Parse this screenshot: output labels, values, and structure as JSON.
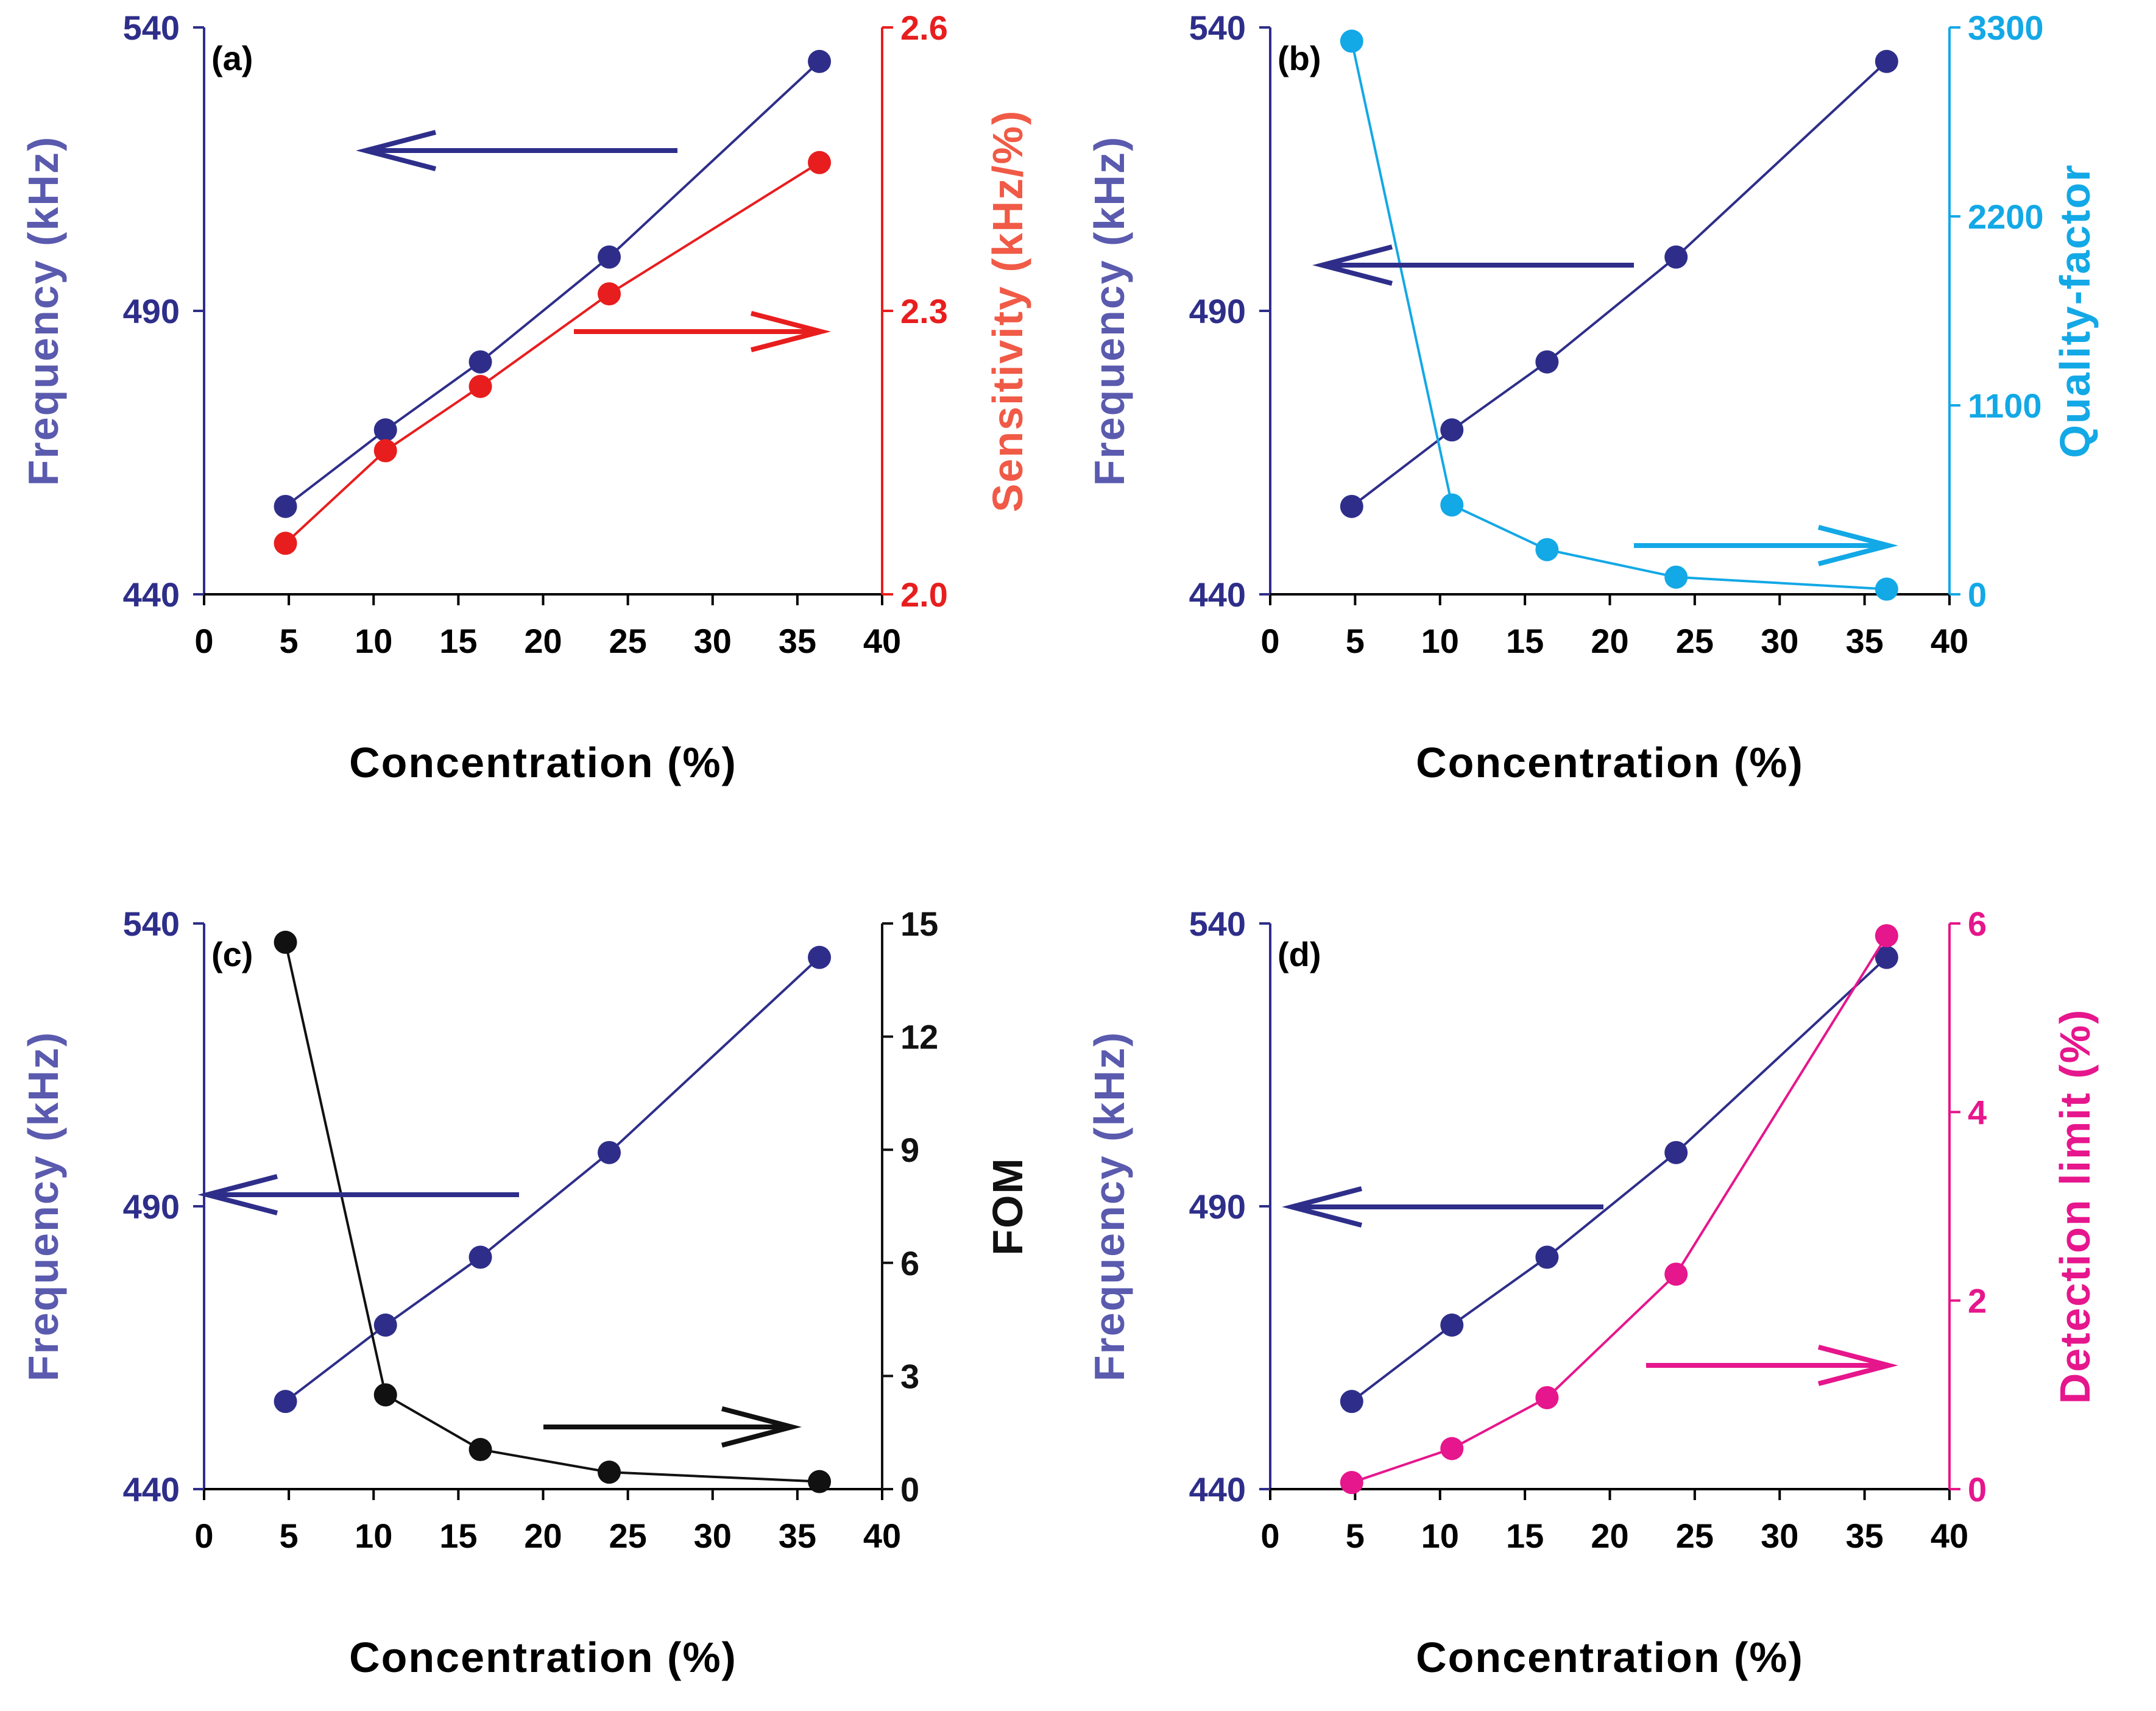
{
  "colors": {
    "frequency": "#2E2E8A",
    "frequency_title": "#5A5AAE",
    "sensitivity": "#E81E1E",
    "sensitivity_title": "#F05A46",
    "quality": "#13A8E6",
    "fom": "#111111",
    "detection": "#E6168C"
  },
  "chart_data": [
    {
      "type": "line",
      "panel_label": "(a)",
      "xlabel": "Concentration (%)",
      "xlim": [
        0,
        40
      ],
      "xticks": [
        "0",
        "5",
        "10",
        "15",
        "20",
        "25",
        "30",
        "35",
        "40"
      ],
      "left_axis": {
        "label": "Frequency (kHz)",
        "ylim": [
          440,
          540
        ],
        "ticks": [
          "440",
          "490",
          "540"
        ]
      },
      "right_axis": {
        "label": "Sensitivity (kHz/%)",
        "ylim": [
          2.0,
          2.6
        ],
        "ticks": [
          "2.0",
          "2.3",
          "2.6"
        ]
      },
      "series": [
        {
          "name": "Frequency",
          "axis": "left",
          "x": [
            4.8,
            10.7,
            16.3,
            23.9,
            36.3
          ],
          "values": [
            455.5,
            469,
            481,
            499.5,
            534
          ]
        },
        {
          "name": "Sensitivity",
          "axis": "right",
          "x": [
            4.8,
            10.7,
            16.3,
            23.9,
            36.3
          ],
          "values": [
            2.054,
            2.152,
            2.22,
            2.318,
            2.457
          ]
        }
      ]
    },
    {
      "type": "line",
      "panel_label": "(b)",
      "xlabel": "Concentration (%)",
      "xlim": [
        0,
        40
      ],
      "xticks": [
        "0",
        "5",
        "10",
        "15",
        "20",
        "25",
        "30",
        "35",
        "40"
      ],
      "left_axis": {
        "label": "Frequency (kHz)",
        "ylim": [
          440,
          540
        ],
        "ticks": [
          "440",
          "490",
          "540"
        ]
      },
      "right_axis": {
        "label": "Quality-factor",
        "ylim": [
          0,
          3300
        ],
        "ticks": [
          "0",
          "1100",
          "2200",
          "3300"
        ]
      },
      "series": [
        {
          "name": "Frequency",
          "axis": "left",
          "x": [
            4.8,
            10.7,
            16.3,
            23.9,
            36.3
          ],
          "values": [
            455.5,
            469,
            481,
            499.5,
            534
          ]
        },
        {
          "name": "Quality-factor",
          "axis": "right",
          "x": [
            4.8,
            10.7,
            16.3,
            23.9,
            36.3
          ],
          "values": [
            3220,
            520,
            260,
            100,
            30
          ]
        }
      ]
    },
    {
      "type": "line",
      "panel_label": "(c)",
      "xlabel": "Concentration (%)",
      "xlim": [
        0,
        40
      ],
      "xticks": [
        "0",
        "5",
        "10",
        "15",
        "20",
        "25",
        "30",
        "35",
        "40"
      ],
      "left_axis": {
        "label": "Frequency (kHz)",
        "ylim": [
          440,
          540
        ],
        "ticks": [
          "440",
          "490",
          "540"
        ]
      },
      "right_axis": {
        "label": "FOM",
        "ylim": [
          0,
          15
        ],
        "ticks": [
          "0",
          "3",
          "6",
          "9",
          "12",
          "15"
        ]
      },
      "series": [
        {
          "name": "Frequency",
          "axis": "left",
          "x": [
            4.8,
            10.7,
            16.3,
            23.9,
            36.3
          ],
          "values": [
            455.5,
            469,
            481,
            499.5,
            534
          ]
        },
        {
          "name": "FOM",
          "axis": "right",
          "x": [
            4.8,
            10.7,
            16.3,
            23.9,
            36.3
          ],
          "values": [
            14.5,
            2.5,
            1.05,
            0.45,
            0.2
          ]
        }
      ]
    },
    {
      "type": "line",
      "panel_label": "(d)",
      "xlabel": "Concentration (%)",
      "xlim": [
        0,
        40
      ],
      "xticks": [
        "0",
        "5",
        "10",
        "15",
        "20",
        "25",
        "30",
        "35",
        "40"
      ],
      "left_axis": {
        "label": "Frequency (kHz)",
        "ylim": [
          440,
          540
        ],
        "ticks": [
          "440",
          "490",
          "540"
        ]
      },
      "right_axis": {
        "label": "Detection limit (%)",
        "ylim": [
          0,
          6
        ],
        "ticks": [
          "0",
          "2",
          "4",
          "6"
        ]
      },
      "series": [
        {
          "name": "Frequency",
          "axis": "left",
          "x": [
            4.8,
            10.7,
            16.3,
            23.9,
            36.3
          ],
          "values": [
            455.5,
            469,
            481,
            499.5,
            534
          ]
        },
        {
          "name": "Detection limit",
          "axis": "right",
          "x": [
            4.8,
            10.7,
            16.3,
            23.9,
            36.3
          ],
          "values": [
            0.07,
            0.43,
            0.97,
            2.28,
            5.87
          ]
        }
      ]
    }
  ]
}
